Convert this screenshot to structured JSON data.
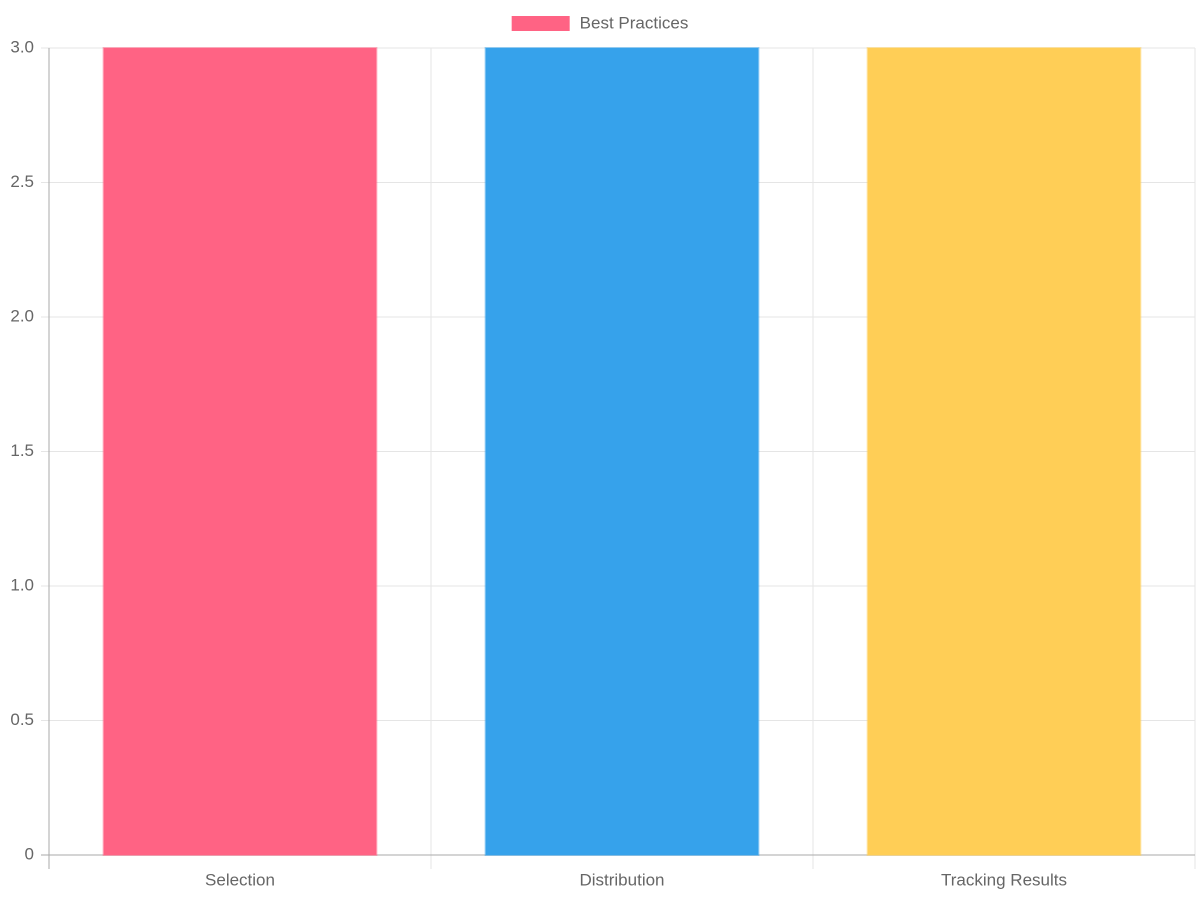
{
  "chart_data": {
    "type": "bar",
    "categories": [
      "Selection",
      "Distribution",
      "Tracking Results"
    ],
    "series": [
      {
        "name": "Best Practices",
        "color": [
          "#ff6384",
          "#36a2eb",
          "#ffce56"
        ],
        "values": [
          3,
          3,
          3
        ]
      }
    ],
    "ylim": [
      0,
      3
    ],
    "yticks": [
      0,
      0.5,
      {
        "value": 1,
        "label": "1.0"
      },
      1.5,
      {
        "value": 2,
        "label": "2.0"
      },
      2.5,
      {
        "value": 3,
        "label": "3.0"
      }
    ],
    "grid": true,
    "legend": "top"
  }
}
